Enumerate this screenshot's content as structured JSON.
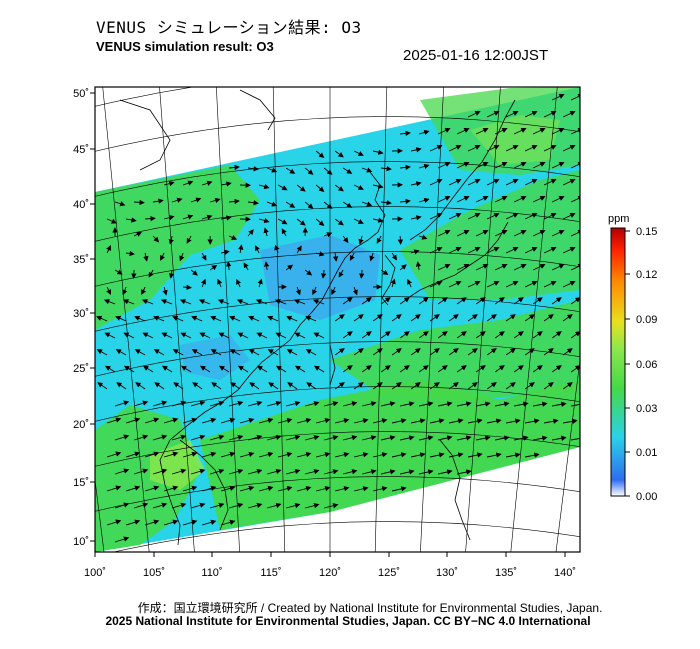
{
  "header": {
    "title_jp": "VENUS シミュレーション結果: O3",
    "title_en": "VENUS simulation result: O3",
    "timestamp": "2025-01-16 12:00JST"
  },
  "map": {
    "lon_ticks": [
      "100˚",
      "105˚",
      "110˚",
      "115˚",
      "120˚",
      "125˚",
      "130˚",
      "135˚",
      "140˚"
    ],
    "lat_ticks": [
      "50˚",
      "45˚",
      "40˚",
      "35˚",
      "30˚",
      "25˚",
      "20˚",
      "15˚",
      "10˚"
    ],
    "colors": {
      "background_cyan": "#29d3e8",
      "low_blue": "#3fa6ee",
      "green": "#45d84a",
      "light_green": "#8be84a"
    },
    "wind_vectors": "overlaid black arrows"
  },
  "colorbar": {
    "unit": "ppm",
    "tick_labels": [
      "0.15",
      "0.12",
      "0.09",
      "0.06",
      "0.03",
      "0.01",
      "0.00"
    ],
    "gradient_stops": [
      "#ffffff",
      "#2060ff",
      "#29d3e8",
      "#45d84a",
      "#e8e020",
      "#ff8a00",
      "#ff2000",
      "#b00000"
    ]
  },
  "footer": {
    "credit_line": "作成：国立環境研究所 / Created by National Institute for Environmental Studies, Japan.",
    "copyright_line": "2025 National Institute for Environmental Studies, Japan. CC BY−NC 4.0 International"
  }
}
